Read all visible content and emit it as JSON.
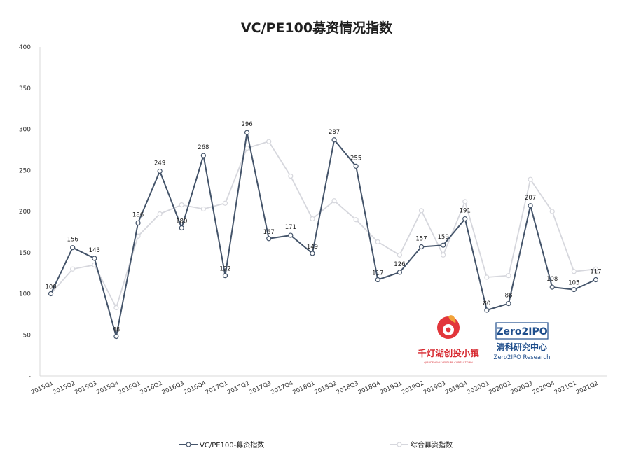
{
  "chart_data": {
    "type": "line",
    "title": "VC/PE100募资情况指数",
    "categories": [
      "2015Q1",
      "2015Q2",
      "2015Q3",
      "2015Q4",
      "2016Q1",
      "2016Q2",
      "2016Q3",
      "2016Q4",
      "2017Q1",
      "2017Q2",
      "2017Q3",
      "2017Q4",
      "2018Q1",
      "2018Q2",
      "2018Q3",
      "2018Q4",
      "2019Q1",
      "2019Q2",
      "2019Q3",
      "2019Q4",
      "2020Q1",
      "2020Q2",
      "2020Q3",
      "2020Q4",
      "2021Q1",
      "2021Q2"
    ],
    "y_ticks": [
      "-",
      "50",
      "100",
      "150",
      "200",
      "250",
      "300",
      "350",
      "400"
    ],
    "ylim": [
      0,
      400
    ],
    "grid": false,
    "legend_position": "bottom",
    "series": [
      {
        "name": "VC/PE100-募资指数",
        "color": "#44546a",
        "values": [
          100,
          156,
          143,
          48,
          186,
          249,
          180,
          268,
          122,
          296,
          167,
          171,
          149,
          287,
          255,
          117,
          126,
          157,
          159,
          191,
          80,
          88,
          207,
          108,
          105,
          117
        ],
        "labels": [
          "100",
          "156",
          "143",
          "48",
          "186",
          "249",
          "180",
          "268",
          "122",
          "296",
          "167",
          "171",
          "149",
          "287",
          "255",
          "117",
          "126",
          "157",
          "159",
          "191",
          "80",
          "88",
          "207",
          "108",
          "105",
          "117"
        ]
      },
      {
        "name": "综合募资指数",
        "color": "#d6d7dd",
        "values": [
          100,
          130,
          135,
          83,
          170,
          197,
          208,
          203,
          210,
          277,
          285,
          243,
          191,
          213,
          190,
          163,
          147,
          201,
          147,
          212,
          120,
          122,
          239,
          200,
          127,
          130
        ]
      }
    ]
  },
  "logos": {
    "qiandenghu": {
      "main": "千灯湖创投小镇",
      "sub": "QIANDENGHU VENTURE CAPITAL TOWN",
      "color": "#d7282f"
    },
    "zero2ipo": {
      "word": "Zero2IPO",
      "cn": "清科研究中心",
      "en": "Zero2IPO Research",
      "color": "#1f4e8c"
    }
  }
}
